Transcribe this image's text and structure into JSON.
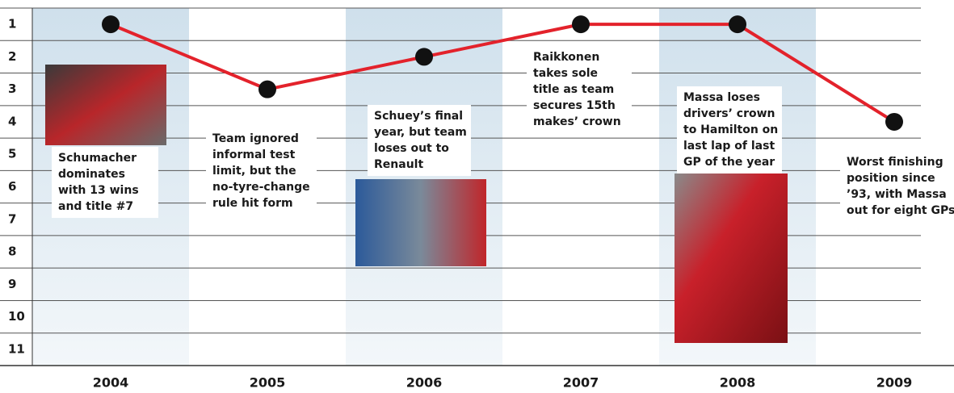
{
  "chart_data": {
    "type": "line",
    "categories": [
      "2004",
      "2005",
      "2006",
      "2007",
      "2008",
      "2009"
    ],
    "values": [
      1,
      3,
      2,
      1,
      1,
      4
    ],
    "color": "#e3222b",
    "ylim": [
      0.5,
      11.5
    ],
    "y_inverted": true,
    "yticks": [
      1,
      2,
      3,
      4,
      5,
      6,
      7,
      8,
      9,
      10,
      11
    ],
    "grid": true,
    "annotations": [
      {
        "category": "2004",
        "lines": [
          "Schumacher",
          "dominates",
          "with 13 wins",
          "and title #7"
        ]
      },
      {
        "category": "2005",
        "lines": [
          "Team ignored",
          "informal test",
          "limit, but the",
          "no-tyre-change",
          "rule hit form"
        ]
      },
      {
        "category": "2006",
        "lines": [
          "Schuey’s final",
          "year, but team",
          "loses out to",
          "Renault"
        ]
      },
      {
        "category": "2007",
        "lines": [
          "Raikkonen",
          "takes sole",
          "title as team",
          "secures 15th",
          "makes’ crown"
        ]
      },
      {
        "category": "2008",
        "lines": [
          "Massa loses",
          "drivers’ crown",
          "to Hamilton on",
          "last lap of last",
          "GP of the year"
        ]
      },
      {
        "category": "2009",
        "lines": [
          "Worst finishing",
          "position since",
          "’93, with Massa",
          "out for eight GPs"
        ]
      }
    ]
  }
}
